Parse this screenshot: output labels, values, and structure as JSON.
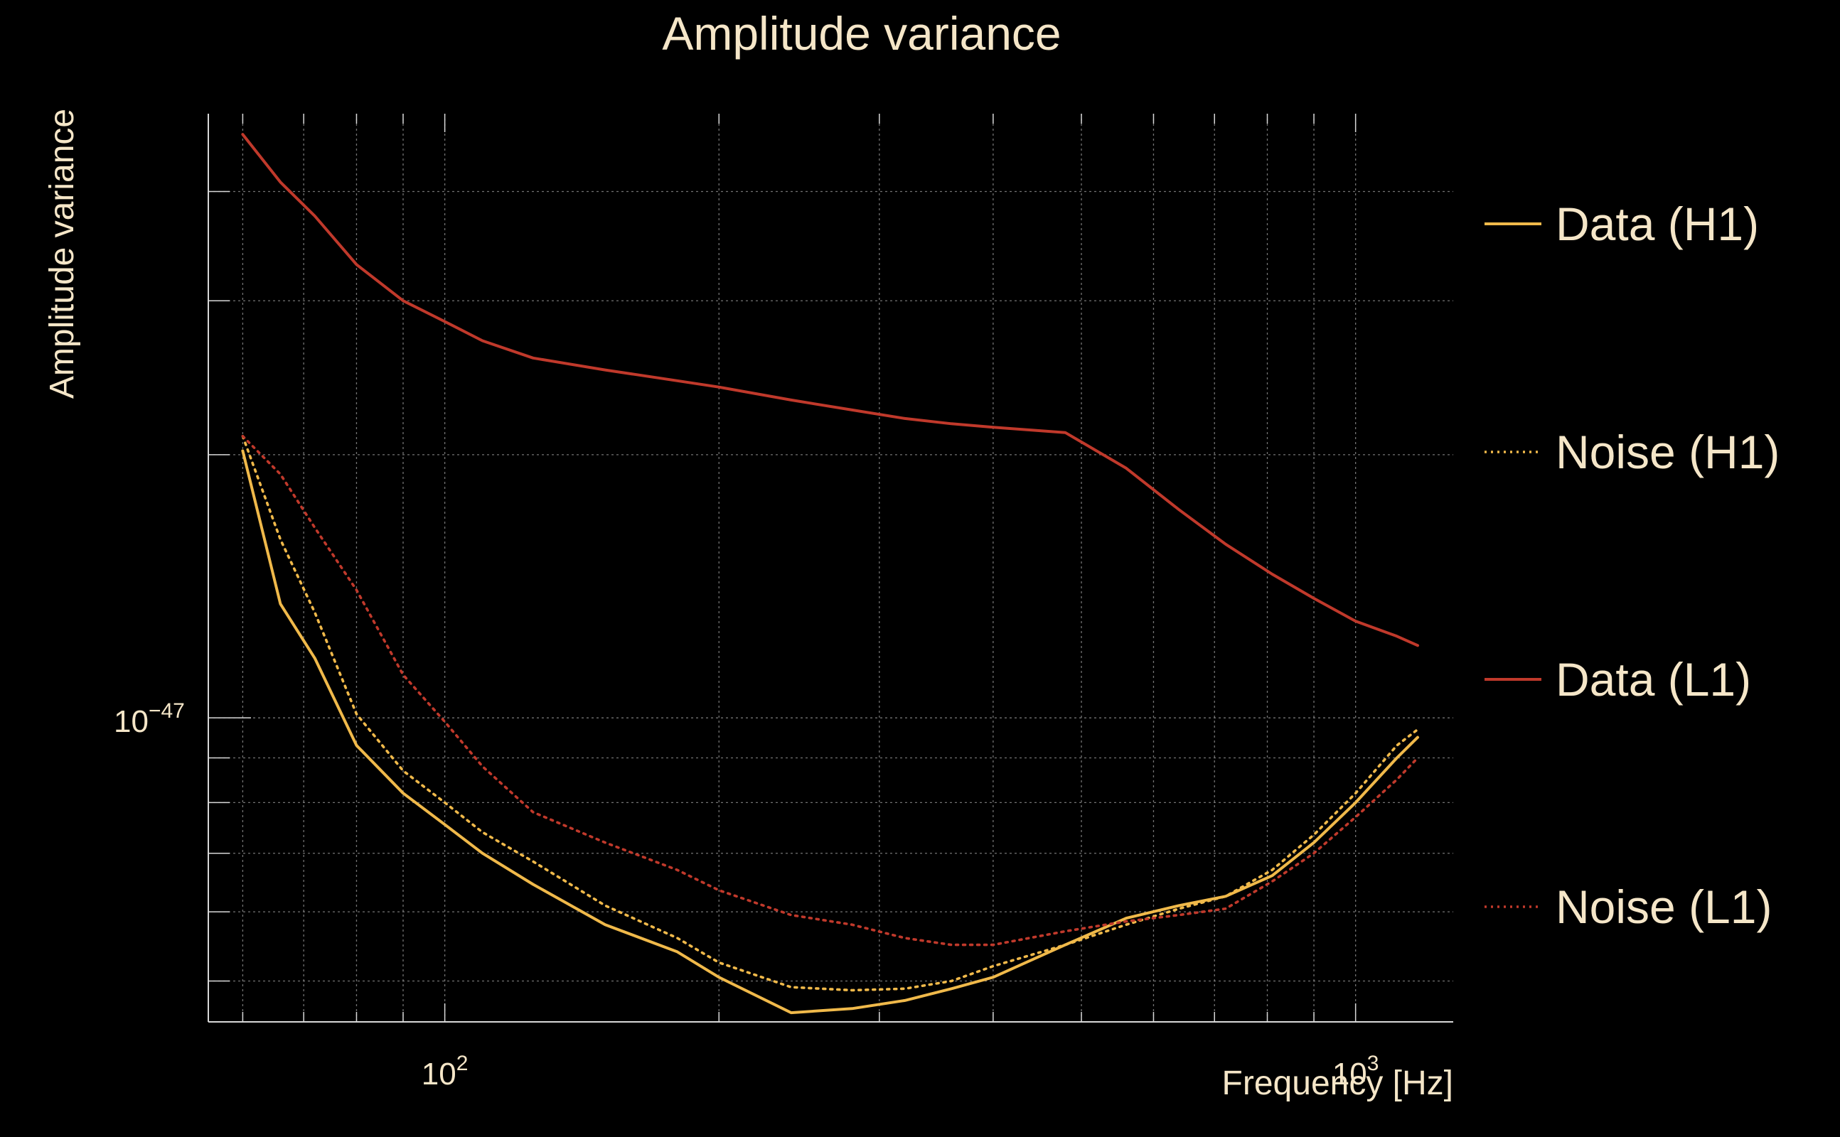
{
  "colors": {
    "background": "#000000",
    "text": "#f5e6c8",
    "grid": "#9a9a9a",
    "axis": "#d8d8d8",
    "h1": "#f0b94a",
    "l1": "#c0392b"
  },
  "chart_data": {
    "type": "line",
    "title": "Amplitude variance",
    "xlabel": "Frequency [Hz]",
    "ylabel": "Amplitude variance",
    "xscale": "log",
    "yscale": "log",
    "xlim": [
      55,
      1280
    ],
    "ylim": [
      4.49e-48,
      4.91e-47
    ],
    "grid": true,
    "legend_position": "right",
    "x_ticks": [
      {
        "value": 100,
        "base": "10",
        "exp": "2"
      },
      {
        "value": 1000,
        "base": "10",
        "exp": "3"
      }
    ],
    "y_ticks": [
      {
        "value": 1e-47,
        "base": "10",
        "exp": "−47"
      }
    ],
    "x": [
      60,
      66,
      72,
      80,
      90,
      100,
      110,
      125,
      150,
      180,
      200,
      240,
      280,
      320,
      360,
      400,
      480,
      560,
      640,
      720,
      810,
      900,
      1000,
      1110,
      1170
    ],
    "series": [
      {
        "name": "Data (H1)",
        "color": "#f0b94a",
        "style": "solid",
        "values": [
          2.02e-47,
          1.35e-47,
          1.17e-47,
          9.3e-48,
          8.2e-48,
          7.55e-48,
          7e-48,
          6.45e-48,
          5.8e-48,
          5.4e-48,
          5.05e-48,
          4.6e-48,
          4.65e-48,
          4.75e-48,
          4.9e-48,
          5.05e-48,
          5.5e-48,
          5.9e-48,
          6.1e-48,
          6.25e-48,
          6.6e-48,
          7.2e-48,
          8e-48,
          9e-48,
          9.5e-48
        ]
      },
      {
        "name": "Noise (H1)",
        "color": "#f0b94a",
        "style": "dotted",
        "values": [
          2.1e-47,
          1.6e-47,
          1.32e-47,
          1.01e-47,
          8.7e-48,
          8e-48,
          7.4e-48,
          6.85e-48,
          6.1e-48,
          5.6e-48,
          5.25e-48,
          4.92e-48,
          4.88e-48,
          4.9e-48,
          5e-48,
          5.2e-48,
          5.5e-48,
          5.8e-48,
          6.05e-48,
          6.25e-48,
          6.7e-48,
          7.35e-48,
          8.2e-48,
          9.3e-48,
          9.7e-48
        ]
      },
      {
        "name": "Data (L1)",
        "color": "#c0392b",
        "style": "solid",
        "values": [
          4.65e-47,
          4.1e-47,
          3.75e-47,
          3.3e-47,
          3e-47,
          2.84e-47,
          2.7e-47,
          2.58e-47,
          2.5e-47,
          2.43e-47,
          2.39e-47,
          2.31e-47,
          2.25e-47,
          2.2e-47,
          2.17e-47,
          2.15e-47,
          2.12e-47,
          1.93e-47,
          1.73e-47,
          1.58e-47,
          1.46e-47,
          1.37e-47,
          1.29e-47,
          1.24e-47,
          1.21e-47
        ]
      },
      {
        "name": "Noise (L1)",
        "color": "#c0392b",
        "style": "dotted",
        "values": [
          2.1e-47,
          1.9e-47,
          1.65e-47,
          1.4e-47,
          1.12e-47,
          9.9e-48,
          8.8e-48,
          7.8e-48,
          7.2e-48,
          6.7e-48,
          6.35e-48,
          5.95e-48,
          5.8e-48,
          5.6e-48,
          5.5e-48,
          5.5e-48,
          5.7e-48,
          5.85e-48,
          5.95e-48,
          6.05e-48,
          6.5e-48,
          7e-48,
          7.7e-48,
          8.5e-48,
          9e-48
        ]
      }
    ]
  }
}
